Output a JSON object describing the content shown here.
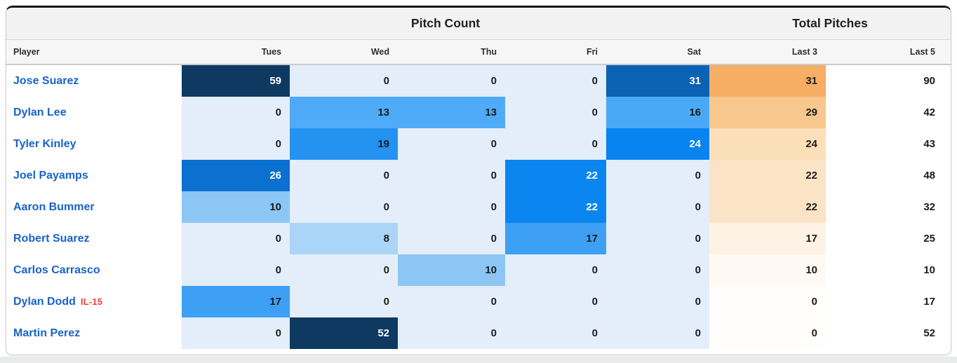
{
  "table": {
    "group_headers": {
      "pitch_count": "Pitch Count",
      "total_pitches": "Total Pitches"
    },
    "columns": [
      "Player",
      "Tues",
      "Wed",
      "Thu",
      "Fri",
      "Sat",
      "Last 3",
      "Last 5"
    ],
    "rows": [
      {
        "player": "Jose Suarez",
        "tag": "",
        "days": [
          59,
          0,
          0,
          0,
          31
        ],
        "last3": 31,
        "last5": 90
      },
      {
        "player": "Dylan Lee",
        "tag": "",
        "days": [
          0,
          13,
          13,
          0,
          16
        ],
        "last3": 29,
        "last5": 42
      },
      {
        "player": "Tyler Kinley",
        "tag": "",
        "days": [
          0,
          19,
          0,
          0,
          24
        ],
        "last3": 24,
        "last5": 43
      },
      {
        "player": "Joel Payamps",
        "tag": "",
        "days": [
          26,
          0,
          0,
          22,
          0
        ],
        "last3": 22,
        "last5": 48
      },
      {
        "player": "Aaron Bummer",
        "tag": "",
        "days": [
          10,
          0,
          0,
          22,
          0
        ],
        "last3": 22,
        "last5": 32
      },
      {
        "player": "Robert Suarez",
        "tag": "",
        "days": [
          0,
          8,
          0,
          17,
          0
        ],
        "last3": 17,
        "last5": 25
      },
      {
        "player": "Carlos Carrasco",
        "tag": "",
        "days": [
          0,
          0,
          10,
          0,
          0
        ],
        "last3": 10,
        "last5": 10
      },
      {
        "player": "Dylan Dodd",
        "tag": "IL-15",
        "days": [
          17,
          0,
          0,
          0,
          0
        ],
        "last3": 0,
        "last5": 17
      },
      {
        "player": "Martin Perez",
        "tag": "",
        "days": [
          0,
          52,
          0,
          0,
          0
        ],
        "last3": 0,
        "last5": 52
      }
    ]
  },
  "heat": {
    "blue": {
      "0": "#e4eefa",
      "8": "#abd5f6",
      "10": "#8cc6f5",
      "13": "#4fabf7",
      "16": "#4aa9f7",
      "17": "#3da0f5",
      "19": "#2492f0",
      "22": "#0b86f0",
      "24": "#0884f0",
      "26": "#0b70cf",
      "31": "#0a62b4",
      "52": "#0e3a62",
      "59": "#0e3a62"
    },
    "blue_white_text_min": 22,
    "orange": {
      "0": "#fffefc",
      "10": "#fefaf3",
      "17": "#fdf2e3",
      "22": "#fbe3c6",
      "24": "#fbdfb9",
      "29": "#f8c78d",
      "31": "#f6ae64"
    },
    "text_dark": "#1c1c1c",
    "text_light": "#ffffff"
  },
  "colors": {
    "player_link": "#1863c9",
    "injury_badge": "#e8402e",
    "card_top_border": "#141414",
    "header_bg": "#f2f2f3"
  }
}
